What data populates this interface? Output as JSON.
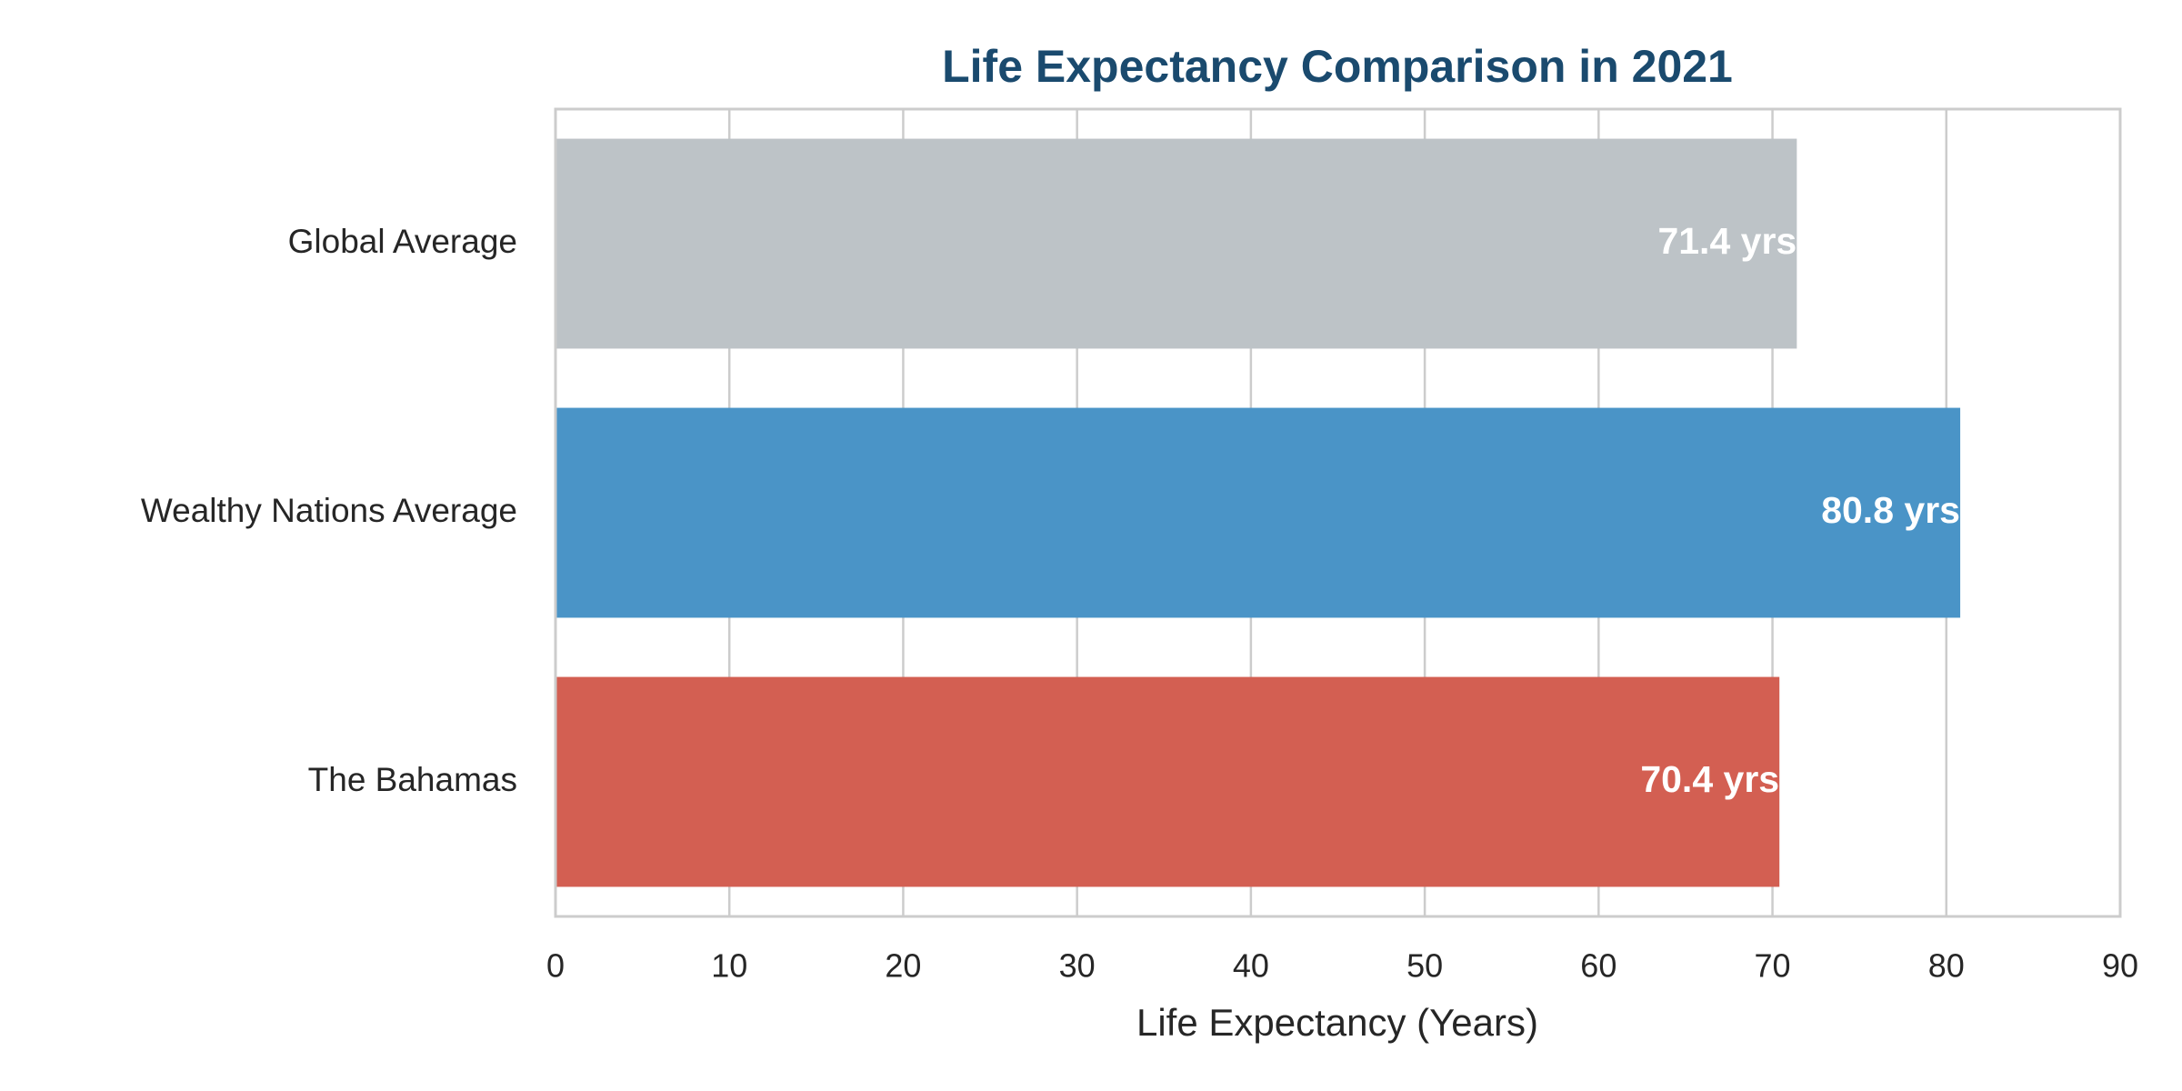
{
  "chart_data": {
    "type": "barh",
    "title": "Life Expectancy Comparison in 2021",
    "xlabel": "Life Expectancy (Years)",
    "categories": [
      "Global Average",
      "Wealthy Nations Average",
      "The Bahamas"
    ],
    "values": [
      71.4,
      80.8,
      70.4
    ],
    "value_labels": [
      "71.4 yrs",
      "80.8 yrs",
      "70.4 yrs"
    ],
    "colors": [
      "#bdc3c7",
      "#4a94c7",
      "#d35f52"
    ],
    "xlim": [
      0,
      90
    ],
    "xticks": [
      0,
      10,
      20,
      30,
      40,
      50,
      60,
      70,
      80,
      90
    ],
    "grid": true
  }
}
